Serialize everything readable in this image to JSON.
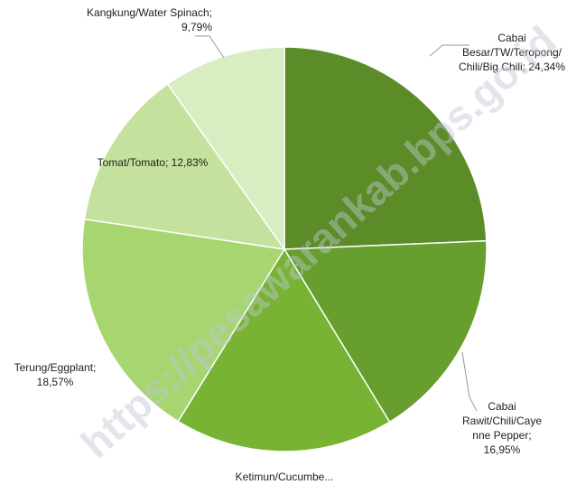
{
  "chart_data": {
    "type": "pie",
    "labels": [
      "Cabai Besar/TW/Teropong/ Chili/Big Chili; 24,34%",
      "Cabai Rawit/Chili/Cayenne Pepper; 16,95%",
      "Ketimun/Cucumbe...",
      "Terung/Eggplant; 18,57%",
      "Tomat/Tomato; 12,83%",
      "Kangkung/Water Spinach; 9,79%"
    ],
    "values": [
      24.34,
      16.95,
      17.52,
      18.57,
      12.83,
      9.79
    ],
    "colors": [
      "#5b8c28",
      "#679e2d",
      "#78b334",
      "#a7d570",
      "#c4e29d",
      "#d8edc1"
    ],
    "watermark": "https://pesawarankab.bps.go.id"
  }
}
